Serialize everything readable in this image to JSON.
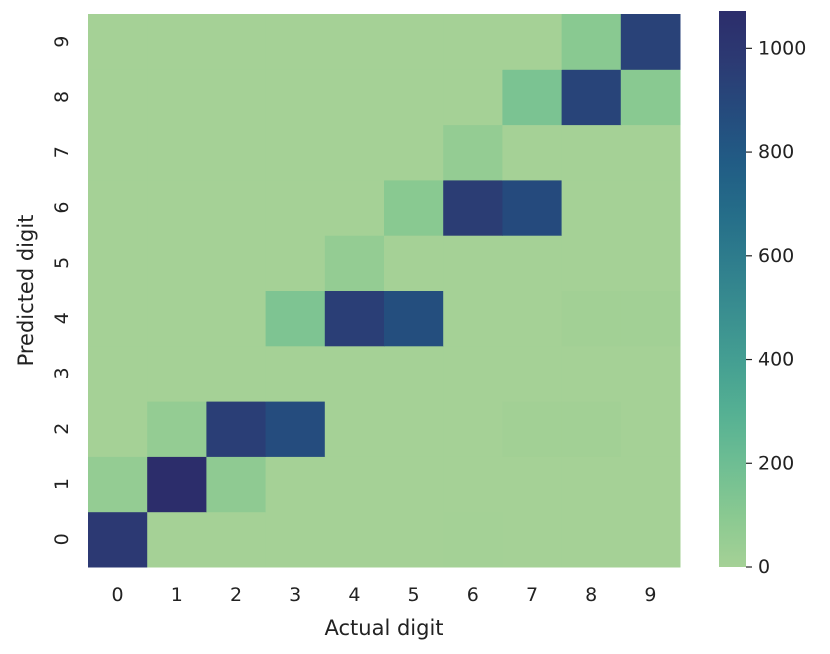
{
  "chart_data": {
    "type": "heatmap",
    "xlabel": "Actual digit",
    "ylabel": "Predicted digit",
    "x_categories": [
      "0",
      "1",
      "2",
      "3",
      "4",
      "5",
      "6",
      "7",
      "8",
      "9"
    ],
    "y_categories": [
      "0",
      "1",
      "2",
      "3",
      "4",
      "5",
      "6",
      "7",
      "8",
      "9"
    ],
    "values": [
      [
        980,
        0,
        0,
        0,
        0,
        0,
        5,
        0,
        0,
        0
      ],
      [
        60,
        1070,
        80,
        0,
        0,
        0,
        0,
        0,
        0,
        0
      ],
      [
        0,
        60,
        950,
        870,
        0,
        0,
        0,
        10,
        10,
        0
      ],
      [
        0,
        0,
        0,
        0,
        0,
        0,
        0,
        0,
        0,
        0
      ],
      [
        0,
        0,
        0,
        140,
        950,
        860,
        0,
        0,
        10,
        10
      ],
      [
        0,
        0,
        0,
        0,
        60,
        0,
        0,
        0,
        0,
        0
      ],
      [
        0,
        0,
        0,
        0,
        0,
        100,
        960,
        880,
        0,
        0
      ],
      [
        0,
        0,
        0,
        0,
        0,
        0,
        60,
        0,
        0,
        0
      ],
      [
        0,
        0,
        0,
        0,
        0,
        0,
        0,
        150,
        920,
        100
      ],
      [
        0,
        0,
        0,
        0,
        0,
        0,
        0,
        0,
        100,
        930
      ]
    ],
    "colorbar": {
      "min": 0,
      "max": 1072,
      "ticks": [
        0,
        200,
        400,
        600,
        800,
        1000
      ],
      "colormap": "crest",
      "stops": [
        "#a5d196",
        "#8ac991",
        "#6fbe93",
        "#56b193",
        "#45a092",
        "#3a8f90",
        "#2f7e8d",
        "#256d89",
        "#215c85",
        "#254b7d",
        "#2c3a73",
        "#2c2d6b"
      ]
    },
    "grid": false
  }
}
